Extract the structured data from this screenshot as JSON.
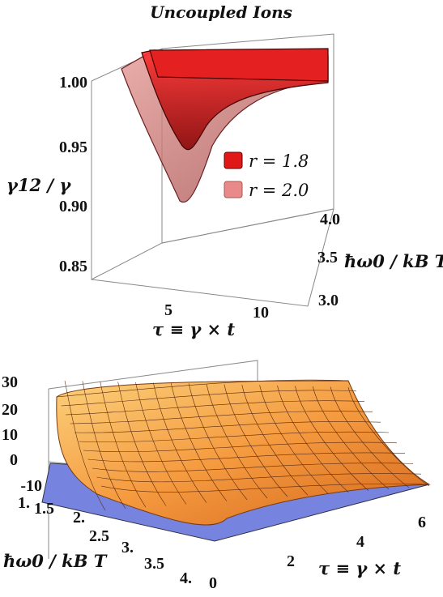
{
  "chart_data": [
    {
      "type": "surface3d",
      "title": "Uncoupled Ions",
      "zlabel": "γ12 / γ",
      "xlabel": "τ ≡ γ × t",
      "ylabel": "ħω0 / kB T",
      "zticks": [
        "1.00",
        "0.95",
        "0.90",
        "0.85"
      ],
      "xticks": [
        "5",
        "10"
      ],
      "yticks": [
        "4.0",
        "3.5",
        "3.0"
      ],
      "zlim": [
        0.83,
        1.0
      ],
      "xlim": [
        0,
        14
      ],
      "ylim": [
        3.0,
        4.0
      ],
      "series": [
        {
          "name": "r = 1.8",
          "color": "#e01818",
          "minimum": {
            "x": 5.5,
            "z": 0.947
          }
        },
        {
          "name": "r = 2.0",
          "color": "#e88a8a",
          "minimum": {
            "x": 5.5,
            "z": 0.905
          }
        }
      ],
      "legend_position": "right-middle"
    },
    {
      "type": "surface3d",
      "xlabel": "τ ≡ γ × t",
      "ylabel": "ħω0 / kB T",
      "zticks": [
        "30",
        "20",
        "10",
        "0",
        "-10"
      ],
      "xticks": [
        "0",
        "2",
        "4",
        "6"
      ],
      "yticks": [
        "1.",
        "1.5",
        "2.",
        "2.5",
        "3.",
        "3.5",
        "4."
      ],
      "zlim": [
        -10,
        30
      ],
      "xlim": [
        0,
        6
      ],
      "ylim": [
        1,
        4
      ],
      "surfaces": [
        {
          "color": "#f08a30",
          "description_values": {
            "z_at_x0_max": 25,
            "z_min": -3
          }
        },
        {
          "color": "#7080e0",
          "plane_z": 0
        }
      ]
    }
  ]
}
